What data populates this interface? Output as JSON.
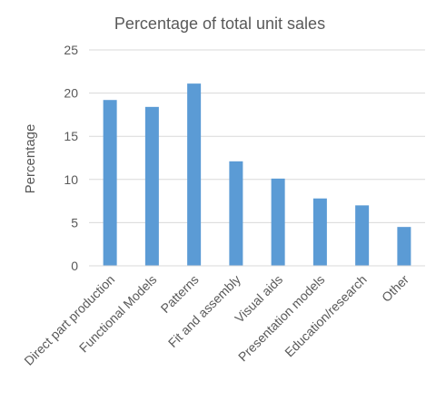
{
  "chart_data": {
    "type": "bar",
    "title": "Percentage of total unit sales",
    "xlabel": "",
    "ylabel": "Percentage",
    "categories": [
      "Direct part production",
      "Functional Models",
      "Patterns",
      "Fit and assembly",
      "Visual aids",
      "Presentation models",
      "Education/research",
      "Other"
    ],
    "values": [
      19.2,
      18.4,
      21.1,
      12.1,
      10.1,
      7.8,
      7.0,
      4.5
    ],
    "ylim": [
      0,
      25
    ],
    "yticks": [
      "0",
      "5",
      "10",
      "15",
      "20",
      "25"
    ],
    "grid": true,
    "legend": "none",
    "bar_color": "#5B9BD5",
    "grid_color": "#D9D9D9"
  }
}
